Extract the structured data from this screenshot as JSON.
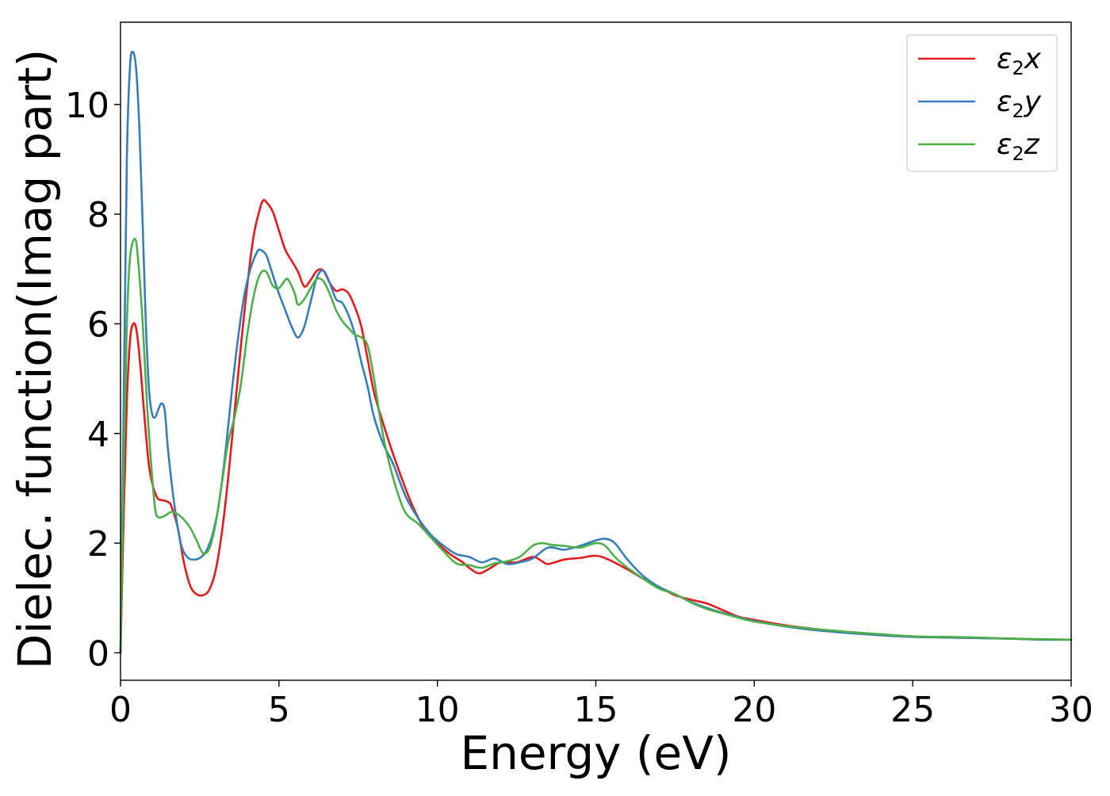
{
  "chart_data": {
    "type": "line",
    "xlabel": "Energy (eV)",
    "ylabel": "Dielec. function(Imag part)",
    "xlim": [
      0,
      30
    ],
    "ylim": [
      -0.5,
      11.5
    ],
    "xticks": [
      "0",
      "5",
      "10",
      "15",
      "20",
      "25",
      "30"
    ],
    "yticks": [
      "0",
      "2",
      "4",
      "6",
      "8",
      "10"
    ],
    "grid": false,
    "legend_position": "top-right",
    "series": [
      {
        "name": "ε2x",
        "legend_main": "ε",
        "legend_sub": "2",
        "legend_suffix": "x",
        "color": "#e41a1c",
        "points": [
          [
            0,
            0
          ],
          [
            0.1,
            2.5
          ],
          [
            0.2,
            4.6
          ],
          [
            0.3,
            5.7
          ],
          [
            0.4,
            6.0
          ],
          [
            0.5,
            5.9
          ],
          [
            0.6,
            5.4
          ],
          [
            0.7,
            4.7
          ],
          [
            0.8,
            4.0
          ],
          [
            0.9,
            3.4
          ],
          [
            1.0,
            3.1
          ],
          [
            1.1,
            2.9
          ],
          [
            1.2,
            2.8
          ],
          [
            1.35,
            2.78
          ],
          [
            1.5,
            2.75
          ],
          [
            1.6,
            2.68
          ],
          [
            1.8,
            2.3
          ],
          [
            2.0,
            1.65
          ],
          [
            2.2,
            1.22
          ],
          [
            2.4,
            1.07
          ],
          [
            2.6,
            1.05
          ],
          [
            2.8,
            1.15
          ],
          [
            3.0,
            1.5
          ],
          [
            3.2,
            2.2
          ],
          [
            3.4,
            3.2
          ],
          [
            3.6,
            4.4
          ],
          [
            3.8,
            5.6
          ],
          [
            4.0,
            6.7
          ],
          [
            4.2,
            7.6
          ],
          [
            4.4,
            8.1
          ],
          [
            4.5,
            8.25
          ],
          [
            4.6,
            8.22
          ],
          [
            4.8,
            8.05
          ],
          [
            5.0,
            7.7
          ],
          [
            5.2,
            7.35
          ],
          [
            5.4,
            7.15
          ],
          [
            5.6,
            6.95
          ],
          [
            5.8,
            6.68
          ],
          [
            6.0,
            6.8
          ],
          [
            6.2,
            6.97
          ],
          [
            6.4,
            6.97
          ],
          [
            6.6,
            6.75
          ],
          [
            6.8,
            6.6
          ],
          [
            7.0,
            6.63
          ],
          [
            7.2,
            6.55
          ],
          [
            7.4,
            6.3
          ],
          [
            7.6,
            5.95
          ],
          [
            7.8,
            5.35
          ],
          [
            8.0,
            4.75
          ],
          [
            8.2,
            4.35
          ],
          [
            8.5,
            3.8
          ],
          [
            8.8,
            3.3
          ],
          [
            9.2,
            2.7
          ],
          [
            9.6,
            2.25
          ],
          [
            10.0,
            2.0
          ],
          [
            10.4,
            1.8
          ],
          [
            10.8,
            1.65
          ],
          [
            11.0,
            1.55
          ],
          [
            11.3,
            1.45
          ],
          [
            11.6,
            1.52
          ],
          [
            12.0,
            1.65
          ],
          [
            12.5,
            1.65
          ],
          [
            13.0,
            1.75
          ],
          [
            13.3,
            1.67
          ],
          [
            13.5,
            1.62
          ],
          [
            14.0,
            1.7
          ],
          [
            14.5,
            1.73
          ],
          [
            15.0,
            1.77
          ],
          [
            15.4,
            1.7
          ],
          [
            16.0,
            1.52
          ],
          [
            16.5,
            1.35
          ],
          [
            17.0,
            1.2
          ],
          [
            17.5,
            1.05
          ],
          [
            18.0,
            0.97
          ],
          [
            18.5,
            0.9
          ],
          [
            19.0,
            0.78
          ],
          [
            19.5,
            0.66
          ],
          [
            20,
            0.6
          ],
          [
            21,
            0.5
          ],
          [
            22,
            0.43
          ],
          [
            23,
            0.37
          ],
          [
            24,
            0.33
          ],
          [
            25,
            0.3
          ],
          [
            26,
            0.28
          ],
          [
            27,
            0.27
          ],
          [
            28,
            0.26
          ],
          [
            29,
            0.245
          ],
          [
            30,
            0.24
          ]
        ]
      },
      {
        "name": "ε2y",
        "legend_main": "ε",
        "legend_sub": "2",
        "legend_suffix": "y",
        "color": "#377eb8",
        "points": [
          [
            0,
            0
          ],
          [
            0.1,
            4.5
          ],
          [
            0.2,
            9.0
          ],
          [
            0.3,
            10.7
          ],
          [
            0.4,
            10.95
          ],
          [
            0.5,
            10.6
          ],
          [
            0.6,
            9.5
          ],
          [
            0.7,
            7.8
          ],
          [
            0.8,
            6.0
          ],
          [
            0.9,
            4.8
          ],
          [
            1.0,
            4.35
          ],
          [
            1.1,
            4.3
          ],
          [
            1.2,
            4.45
          ],
          [
            1.3,
            4.55
          ],
          [
            1.4,
            4.4
          ],
          [
            1.5,
            3.7
          ],
          [
            1.7,
            2.7
          ],
          [
            1.9,
            2.0
          ],
          [
            2.1,
            1.75
          ],
          [
            2.3,
            1.7
          ],
          [
            2.5,
            1.73
          ],
          [
            2.7,
            1.85
          ],
          [
            2.9,
            2.15
          ],
          [
            3.1,
            2.7
          ],
          [
            3.3,
            3.6
          ],
          [
            3.5,
            4.7
          ],
          [
            3.7,
            5.7
          ],
          [
            3.9,
            6.5
          ],
          [
            4.1,
            7.0
          ],
          [
            4.3,
            7.3
          ],
          [
            4.4,
            7.35
          ],
          [
            4.6,
            7.25
          ],
          [
            4.8,
            6.9
          ],
          [
            5.0,
            6.55
          ],
          [
            5.2,
            6.25
          ],
          [
            5.4,
            5.95
          ],
          [
            5.6,
            5.75
          ],
          [
            5.8,
            5.95
          ],
          [
            6.0,
            6.4
          ],
          [
            6.2,
            6.85
          ],
          [
            6.4,
            6.97
          ],
          [
            6.6,
            6.75
          ],
          [
            6.8,
            6.45
          ],
          [
            7.0,
            6.38
          ],
          [
            7.2,
            6.15
          ],
          [
            7.4,
            5.8
          ],
          [
            7.6,
            5.3
          ],
          [
            7.8,
            4.85
          ],
          [
            8.0,
            4.3
          ],
          [
            8.3,
            3.8
          ],
          [
            8.6,
            3.45
          ],
          [
            9.0,
            2.85
          ],
          [
            9.4,
            2.45
          ],
          [
            9.8,
            2.15
          ],
          [
            10.2,
            1.95
          ],
          [
            10.6,
            1.8
          ],
          [
            11.0,
            1.75
          ],
          [
            11.4,
            1.65
          ],
          [
            11.8,
            1.72
          ],
          [
            12.2,
            1.62
          ],
          [
            12.6,
            1.65
          ],
          [
            13.0,
            1.72
          ],
          [
            13.5,
            1.92
          ],
          [
            14.0,
            1.88
          ],
          [
            14.5,
            1.95
          ],
          [
            15.0,
            2.05
          ],
          [
            15.3,
            2.08
          ],
          [
            15.6,
            2.0
          ],
          [
            16.0,
            1.7
          ],
          [
            16.5,
            1.4
          ],
          [
            17.0,
            1.2
          ],
          [
            17.5,
            1.07
          ],
          [
            18.0,
            0.93
          ],
          [
            18.5,
            0.82
          ],
          [
            19,
            0.73
          ],
          [
            19.5,
            0.65
          ],
          [
            20,
            0.58
          ],
          [
            21,
            0.48
          ],
          [
            22,
            0.41
          ],
          [
            23,
            0.36
          ],
          [
            24,
            0.32
          ],
          [
            25,
            0.29
          ],
          [
            26,
            0.28
          ],
          [
            27,
            0.27
          ],
          [
            28,
            0.26
          ],
          [
            29,
            0.24
          ],
          [
            30,
            0.24
          ]
        ]
      },
      {
        "name": "ε2z",
        "legend_main": "ε",
        "legend_sub": "2",
        "legend_suffix": "z",
        "color": "#4daf4a",
        "points": [
          [
            0,
            0
          ],
          [
            0.1,
            3.5
          ],
          [
            0.2,
            6.0
          ],
          [
            0.3,
            7.2
          ],
          [
            0.45,
            7.55
          ],
          [
            0.55,
            7.2
          ],
          [
            0.7,
            6.0
          ],
          [
            0.85,
            4.4
          ],
          [
            1.0,
            3.2
          ],
          [
            1.1,
            2.6
          ],
          [
            1.2,
            2.47
          ],
          [
            1.4,
            2.5
          ],
          [
            1.6,
            2.57
          ],
          [
            1.8,
            2.53
          ],
          [
            2.0,
            2.43
          ],
          [
            2.2,
            2.28
          ],
          [
            2.4,
            2.05
          ],
          [
            2.6,
            1.82
          ],
          [
            2.8,
            1.9
          ],
          [
            3.0,
            2.35
          ],
          [
            3.2,
            3.1
          ],
          [
            3.4,
            3.85
          ],
          [
            3.6,
            4.3
          ],
          [
            3.8,
            4.9
          ],
          [
            4.0,
            5.8
          ],
          [
            4.2,
            6.5
          ],
          [
            4.4,
            6.9
          ],
          [
            4.6,
            6.95
          ],
          [
            4.8,
            6.7
          ],
          [
            5.0,
            6.65
          ],
          [
            5.2,
            6.8
          ],
          [
            5.3,
            6.8
          ],
          [
            5.5,
            6.55
          ],
          [
            5.6,
            6.35
          ],
          [
            5.8,
            6.45
          ],
          [
            6.0,
            6.65
          ],
          [
            6.2,
            6.82
          ],
          [
            6.4,
            6.78
          ],
          [
            6.6,
            6.55
          ],
          [
            6.8,
            6.25
          ],
          [
            7.0,
            6.05
          ],
          [
            7.2,
            5.92
          ],
          [
            7.4,
            5.8
          ],
          [
            7.6,
            5.75
          ],
          [
            7.8,
            5.6
          ],
          [
            8.0,
            5.0
          ],
          [
            8.2,
            4.25
          ],
          [
            8.4,
            3.65
          ],
          [
            8.7,
            3.0
          ],
          [
            9.0,
            2.55
          ],
          [
            9.4,
            2.35
          ],
          [
            9.8,
            2.1
          ],
          [
            10.2,
            1.85
          ],
          [
            10.6,
            1.63
          ],
          [
            11.0,
            1.6
          ],
          [
            11.4,
            1.55
          ],
          [
            11.8,
            1.63
          ],
          [
            12.2,
            1.67
          ],
          [
            12.6,
            1.75
          ],
          [
            13.0,
            1.95
          ],
          [
            13.3,
            2.0
          ],
          [
            13.6,
            1.97
          ],
          [
            14.0,
            1.95
          ],
          [
            14.5,
            1.92
          ],
          [
            15.0,
            2.0
          ],
          [
            15.3,
            1.95
          ],
          [
            15.6,
            1.75
          ],
          [
            16.0,
            1.55
          ],
          [
            16.5,
            1.35
          ],
          [
            17.0,
            1.17
          ],
          [
            17.5,
            1.07
          ],
          [
            18.0,
            0.92
          ],
          [
            18.5,
            0.8
          ],
          [
            19,
            0.72
          ],
          [
            19.5,
            0.64
          ],
          [
            20,
            0.57
          ],
          [
            21,
            0.49
          ],
          [
            22,
            0.43
          ],
          [
            23,
            0.38
          ],
          [
            24,
            0.34
          ],
          [
            25,
            0.3
          ],
          [
            26,
            0.29
          ],
          [
            27,
            0.28
          ],
          [
            28,
            0.26
          ],
          [
            29,
            0.25
          ],
          [
            30,
            0.24
          ]
        ]
      }
    ]
  }
}
